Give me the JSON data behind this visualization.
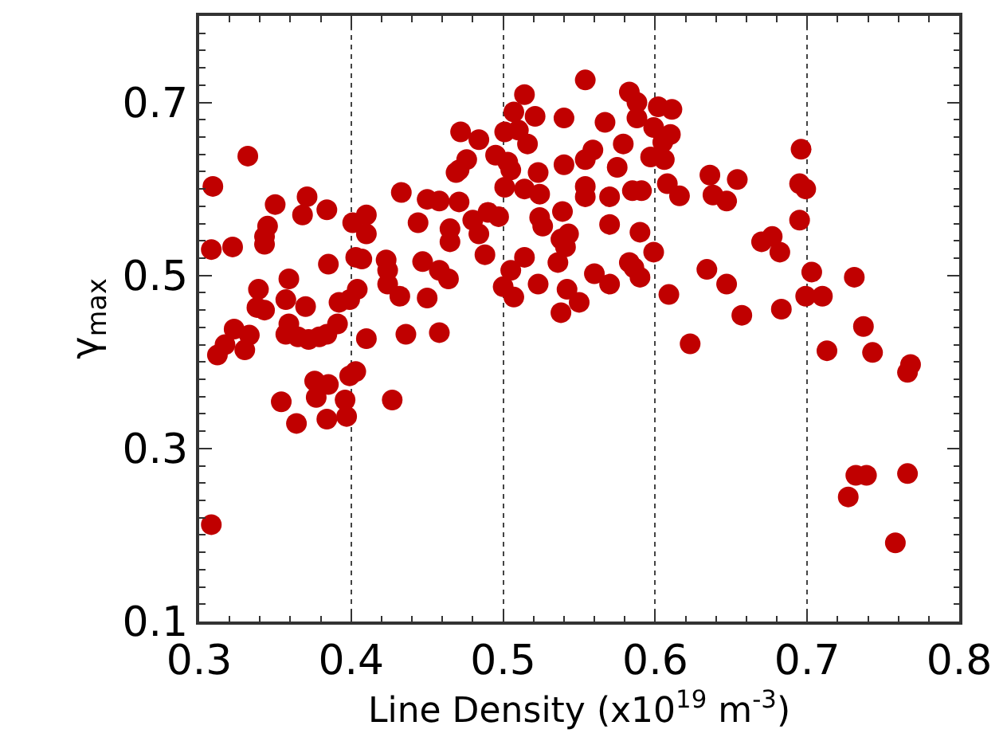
{
  "chart_data": {
    "type": "scatter",
    "xlabel": "Line Density (x10$^{19}$ m$^{-3}$)",
    "ylabel": "γ$_{max}$",
    "xlim": [
      0.3,
      0.8
    ],
    "ylim": [
      0.1,
      0.8
    ],
    "xticks": [
      0.3,
      0.4,
      0.5,
      0.6,
      0.7,
      0.8
    ],
    "yticks": [
      0.1,
      0.3,
      0.5,
      0.7
    ],
    "grid": "x",
    "marker": "circle",
    "series": [
      {
        "color": "#c00000",
        "x": [
          0.309,
          0.332,
          0.308,
          0.322,
          0.308,
          0.35,
          0.345,
          0.343,
          0.343,
          0.371,
          0.368,
          0.384,
          0.385,
          0.339,
          0.338,
          0.343,
          0.359,
          0.357,
          0.37,
          0.312,
          0.317,
          0.323,
          0.333,
          0.33,
          0.359,
          0.357,
          0.365,
          0.372,
          0.379,
          0.384,
          0.391,
          0.392,
          0.399,
          0.404,
          0.403,
          0.407,
          0.401,
          0.41,
          0.41,
          0.403,
          0.399,
          0.376,
          0.385,
          0.377,
          0.354,
          0.364,
          0.384,
          0.396,
          0.397,
          0.41,
          0.427,
          0.423,
          0.424,
          0.424,
          0.432,
          0.433,
          0.444,
          0.45,
          0.458,
          0.447,
          0.458,
          0.45,
          0.436,
          0.458,
          0.464,
          0.472,
          0.484,
          0.471,
          0.476,
          0.469,
          0.471,
          0.465,
          0.465,
          0.48,
          0.484,
          0.488,
          0.49,
          0.497,
          0.495,
          0.501,
          0.507,
          0.514,
          0.521,
          0.516,
          0.51,
          0.503,
          0.505,
          0.501,
          0.514,
          0.523,
          0.524,
          0.524,
          0.526,
          0.514,
          0.505,
          0.5,
          0.507,
          0.523,
          0.54,
          0.554,
          0.567,
          0.54,
          0.554,
          0.559,
          0.554,
          0.554,
          0.539,
          0.543,
          0.538,
          0.541,
          0.536,
          0.542,
          0.55,
          0.538,
          0.56,
          0.57,
          0.57,
          0.57,
          0.575,
          0.579,
          0.583,
          0.588,
          0.588,
          0.585,
          0.591,
          0.59,
          0.583,
          0.586,
          0.59,
          0.599,
          0.599,
          0.602,
          0.611,
          0.61,
          0.605,
          0.597,
          0.606,
          0.608,
          0.616,
          0.609,
          0.623,
          0.636,
          0.638,
          0.647,
          0.654,
          0.634,
          0.647,
          0.657,
          0.67,
          0.677,
          0.682,
          0.683,
          0.696,
          0.695,
          0.699,
          0.695,
          0.703,
          0.699,
          0.71,
          0.713,
          0.731,
          0.737,
          0.743,
          0.766,
          0.768,
          0.732,
          0.739,
          0.727,
          0.766,
          0.758
        ],
        "values": [
          0.603,
          0.638,
          0.53,
          0.533,
          0.212,
          0.582,
          0.557,
          0.545,
          0.536,
          0.591,
          0.57,
          0.576,
          0.513,
          0.484,
          0.463,
          0.46,
          0.496,
          0.472,
          0.464,
          0.408,
          0.42,
          0.438,
          0.431,
          0.414,
          0.444,
          0.432,
          0.429,
          0.426,
          0.429,
          0.432,
          0.444,
          0.469,
          0.472,
          0.484,
          0.521,
          0.519,
          0.561,
          0.57,
          0.548,
          0.389,
          0.384,
          0.378,
          0.374,
          0.359,
          0.354,
          0.329,
          0.334,
          0.356,
          0.337,
          0.427,
          0.356,
          0.518,
          0.506,
          0.49,
          0.476,
          0.596,
          0.561,
          0.588,
          0.586,
          0.516,
          0.506,
          0.474,
          0.432,
          0.434,
          0.496,
          0.666,
          0.657,
          0.622,
          0.634,
          0.619,
          0.585,
          0.554,
          0.539,
          0.564,
          0.548,
          0.524,
          0.573,
          0.568,
          0.639,
          0.666,
          0.689,
          0.709,
          0.684,
          0.652,
          0.668,
          0.631,
          0.622,
          0.602,
          0.6,
          0.619,
          0.594,
          0.567,
          0.557,
          0.521,
          0.506,
          0.487,
          0.475,
          0.49,
          0.682,
          0.726,
          0.677,
          0.628,
          0.634,
          0.645,
          0.603,
          0.591,
          0.574,
          0.548,
          0.542,
          0.533,
          0.515,
          0.484,
          0.469,
          0.457,
          0.502,
          0.49,
          0.591,
          0.559,
          0.625,
          0.652,
          0.712,
          0.7,
          0.682,
          0.598,
          0.598,
          0.55,
          0.515,
          0.509,
          0.498,
          0.527,
          0.671,
          0.695,
          0.692,
          0.663,
          0.654,
          0.637,
          0.634,
          0.606,
          0.592,
          0.478,
          0.421,
          0.616,
          0.593,
          0.586,
          0.611,
          0.507,
          0.49,
          0.454,
          0.539,
          0.545,
          0.527,
          0.461,
          0.646,
          0.606,
          0.6,
          0.564,
          0.504,
          0.476,
          0.476,
          0.413,
          0.498,
          0.441,
          0.411,
          0.388,
          0.397,
          0.269,
          0.269,
          0.244,
          0.271,
          0.191
        ]
      }
    ]
  }
}
